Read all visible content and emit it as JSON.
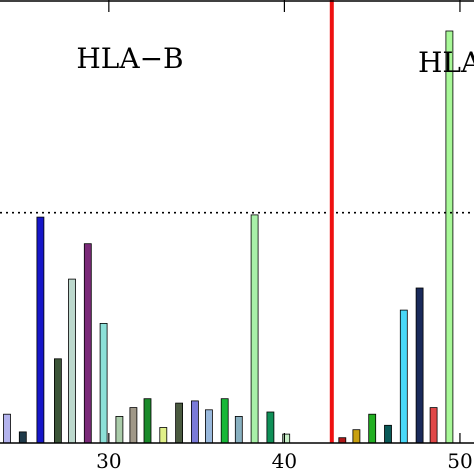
{
  "chart_data": {
    "type": "bar",
    "panel_labels": [
      "HLA−B",
      "HLA−"
    ],
    "x_tick_labels": [
      "30",
      "40",
      "50"
    ],
    "x_ticks": [
      30,
      40,
      50
    ],
    "xlim": [
      23.8,
      50.8
    ],
    "ylim": [
      0,
      1.0
    ],
    "threshold": 0.52,
    "separator_x": 42.7,
    "series": [
      {
        "values": [
          {
            "x": 24.2,
            "y": 0.065,
            "color": "#b3b3ee"
          },
          {
            "x": 25.1,
            "y": 0.025,
            "color": "#1f3a4a"
          },
          {
            "x": 26.1,
            "y": 0.51,
            "color": "#1616c8"
          },
          {
            "x": 27.1,
            "y": 0.19,
            "color": "#3c5538"
          },
          {
            "x": 27.9,
            "y": 0.37,
            "color": "#bcd8cc"
          },
          {
            "x": 28.8,
            "y": 0.45,
            "color": "#7a2a78"
          },
          {
            "x": 29.7,
            "y": 0.27,
            "color": "#8ce0d8"
          },
          {
            "x": 30.6,
            "y": 0.06,
            "color": "#aaccaa"
          },
          {
            "x": 31.4,
            "y": 0.08,
            "color": "#a09888"
          },
          {
            "x": 32.2,
            "y": 0.1,
            "color": "#1a8a2a"
          },
          {
            "x": 33.1,
            "y": 0.035,
            "color": "#e0f088"
          },
          {
            "x": 34.0,
            "y": 0.09,
            "color": "#4a5a40"
          },
          {
            "x": 34.9,
            "y": 0.095,
            "color": "#7a7ad8"
          },
          {
            "x": 35.7,
            "y": 0.075,
            "color": "#98b8dc"
          },
          {
            "x": 36.6,
            "y": 0.1,
            "color": "#18b838"
          },
          {
            "x": 37.4,
            "y": 0.06,
            "color": "#88b0c0"
          },
          {
            "x": 38.3,
            "y": 0.515,
            "color": "#a8f0a8"
          },
          {
            "x": 39.2,
            "y": 0.07,
            "color": "#109058"
          },
          {
            "x": 40.1,
            "y": 0.02,
            "color": "#c8f0c8"
          },
          {
            "x": 43.3,
            "y": 0.012,
            "color": "#b01818"
          },
          {
            "x": 44.1,
            "y": 0.03,
            "color": "#c8a010"
          },
          {
            "x": 45.0,
            "y": 0.065,
            "color": "#22b022"
          },
          {
            "x": 45.9,
            "y": 0.04,
            "color": "#0a5a58"
          },
          {
            "x": 46.8,
            "y": 0.3,
            "color": "#48d8f8"
          },
          {
            "x": 47.7,
            "y": 0.35,
            "color": "#1a2a5a"
          },
          {
            "x": 48.5,
            "y": 0.08,
            "color": "#e04848"
          },
          {
            "x": 49.4,
            "y": 0.93,
            "color": "#a8f898"
          }
        ]
      }
    ],
    "colors": {
      "separator": "#ee1111",
      "threshold": "#000000",
      "bar_edge": "#000000"
    }
  }
}
